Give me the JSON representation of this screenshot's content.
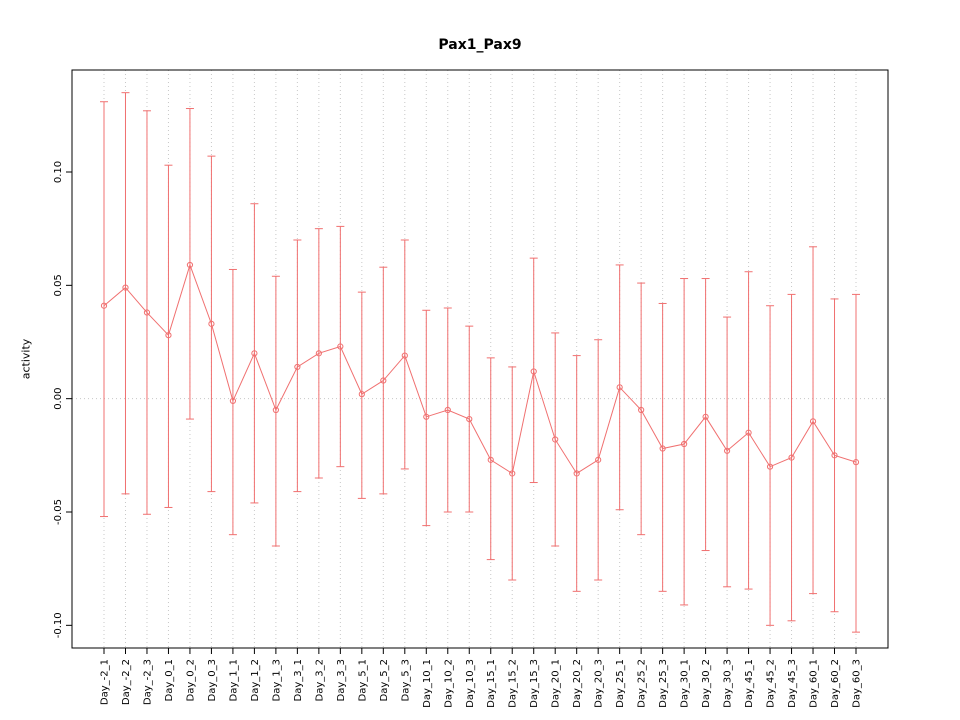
{
  "chart_data": {
    "type": "line",
    "error_bars": true,
    "title": "Pax1_Pax9",
    "xlabel": "",
    "ylabel": "activity",
    "ylim": [
      -0.11,
      0.145
    ],
    "yticks": [
      -0.1,
      -0.05,
      0.0,
      0.05,
      0.1
    ],
    "ytick_labels": [
      "-0.10",
      "-0.05",
      "0.00",
      "0.05",
      "0.10"
    ],
    "grid": "dotted vertical line at each category plus dotted horizontal line at y=0",
    "legend": "none",
    "series_color": "#f07070",
    "grid_color": "#c8c8c8",
    "axis_color": "#000000",
    "marker": "open-circle",
    "categories": [
      "Day_-2_1",
      "Day_-2_2",
      "Day_-2_3",
      "Day_0_1",
      "Day_0_2",
      "Day_0_3",
      "Day_1_1",
      "Day_1_2",
      "Day_1_3",
      "Day_3_1",
      "Day_3_2",
      "Day_3_3",
      "Day_5_1",
      "Day_5_2",
      "Day_5_3",
      "Day_10_1",
      "Day_10_2",
      "Day_10_3",
      "Day_15_1",
      "Day_15_2",
      "Day_15_3",
      "Day_20_1",
      "Day_20_2",
      "Day_20_3",
      "Day_25_1",
      "Day_25_2",
      "Day_25_3",
      "Day_30_1",
      "Day_30_2",
      "Day_30_3",
      "Day_45_1",
      "Day_45_2",
      "Day_45_3",
      "Day_60_1",
      "Day_60_2",
      "Day_60_3"
    ],
    "values": [
      0.041,
      0.049,
      0.038,
      0.028,
      0.059,
      0.033,
      -0.001,
      0.02,
      -0.005,
      0.014,
      0.02,
      0.023,
      0.002,
      0.008,
      0.019,
      -0.008,
      -0.005,
      -0.009,
      -0.027,
      -0.033,
      0.012,
      -0.018,
      -0.033,
      -0.027,
      0.005,
      -0.005,
      -0.022,
      -0.02,
      -0.008,
      -0.023,
      -0.015,
      -0.03,
      -0.026,
      -0.01,
      -0.025,
      -0.028
    ],
    "upper": [
      0.131,
      0.135,
      0.127,
      0.103,
      0.128,
      0.107,
      0.057,
      0.086,
      0.054,
      0.07,
      0.075,
      0.076,
      0.047,
      0.058,
      0.07,
      0.039,
      0.04,
      0.032,
      0.018,
      0.014,
      0.062,
      0.029,
      0.019,
      0.026,
      0.059,
      0.051,
      0.042,
      0.053,
      0.053,
      0.036,
      0.056,
      0.041,
      0.046,
      0.067,
      0.044,
      0.046
    ],
    "lower": [
      -0.052,
      -0.042,
      -0.051,
      -0.048,
      -0.009,
      -0.041,
      -0.06,
      -0.046,
      -0.065,
      -0.041,
      -0.035,
      -0.03,
      -0.044,
      -0.042,
      -0.031,
      -0.056,
      -0.05,
      -0.05,
      -0.071,
      -0.08,
      -0.037,
      -0.065,
      -0.085,
      -0.08,
      -0.049,
      -0.06,
      -0.085,
      -0.091,
      -0.067,
      -0.083,
      -0.084,
      -0.1,
      -0.098,
      -0.086,
      -0.094,
      -0.103
    ]
  }
}
